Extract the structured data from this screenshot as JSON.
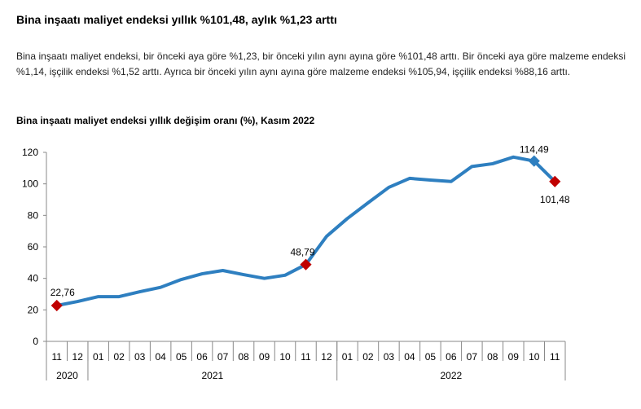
{
  "headline": "Bina inşaatı maliyet endeksi yıllık %101,48, aylık %1,23 arttı",
  "paragraph": "Bina inşaatı maliyet endeksi, bir önceki aya göre %1,23, bir önceki yılın aynı ayına göre %101,48 arttı. Bir önceki aya göre malzeme endeksi %1,14, işçilik endeksi %1,52 arttı. Ayrıca bir önceki yılın aynı ayına göre malzeme endeksi %105,94, işçilik endeksi %88,16 arttı.",
  "chart_data": {
    "type": "line",
    "title": "Bina inşaatı maliyet endeksi yıllık değişim oranı (%), Kasım 2022",
    "xlabel": "",
    "ylabel": "",
    "ylim": [
      0,
      120
    ],
    "yticks": [
      "0",
      "20",
      "40",
      "60",
      "80",
      "100",
      "120"
    ],
    "categories": [
      "11",
      "12",
      "01",
      "02",
      "03",
      "04",
      "05",
      "06",
      "07",
      "08",
      "09",
      "10",
      "11",
      "12",
      "01",
      "02",
      "03",
      "04",
      "05",
      "06",
      "07",
      "08",
      "09",
      "10",
      "11"
    ],
    "year_groups": [
      {
        "label": "2020",
        "count": 2
      },
      {
        "label": "2021",
        "count": 12
      },
      {
        "label": "2022",
        "count": 11
      }
    ],
    "series": [
      {
        "name": "Yıllık değişim oranı",
        "color": "#2e7fc0",
        "values": [
          22.76,
          25.3,
          28.4,
          28.4,
          31.5,
          34.3,
          39.3,
          42.9,
          45.0,
          42.4,
          40.0,
          42.0,
          48.79,
          66.7,
          78.0,
          88.0,
          97.8,
          103.5,
          102.4,
          101.5,
          111.0,
          112.8,
          117.0,
          114.49,
          101.48
        ]
      }
    ],
    "labels": [
      {
        "index": 0,
        "text": "22,76",
        "marker": "#c00000",
        "pos": "above"
      },
      {
        "index": 12,
        "text": "48,79",
        "marker": "#c00000",
        "pos": "above-left"
      },
      {
        "index": 23,
        "text": "114,49",
        "marker": "#2e7fc0",
        "pos": "above"
      },
      {
        "index": 24,
        "text": "101,48",
        "marker": "#c00000",
        "pos": "below"
      }
    ],
    "grid": false,
    "legend": "none"
  }
}
